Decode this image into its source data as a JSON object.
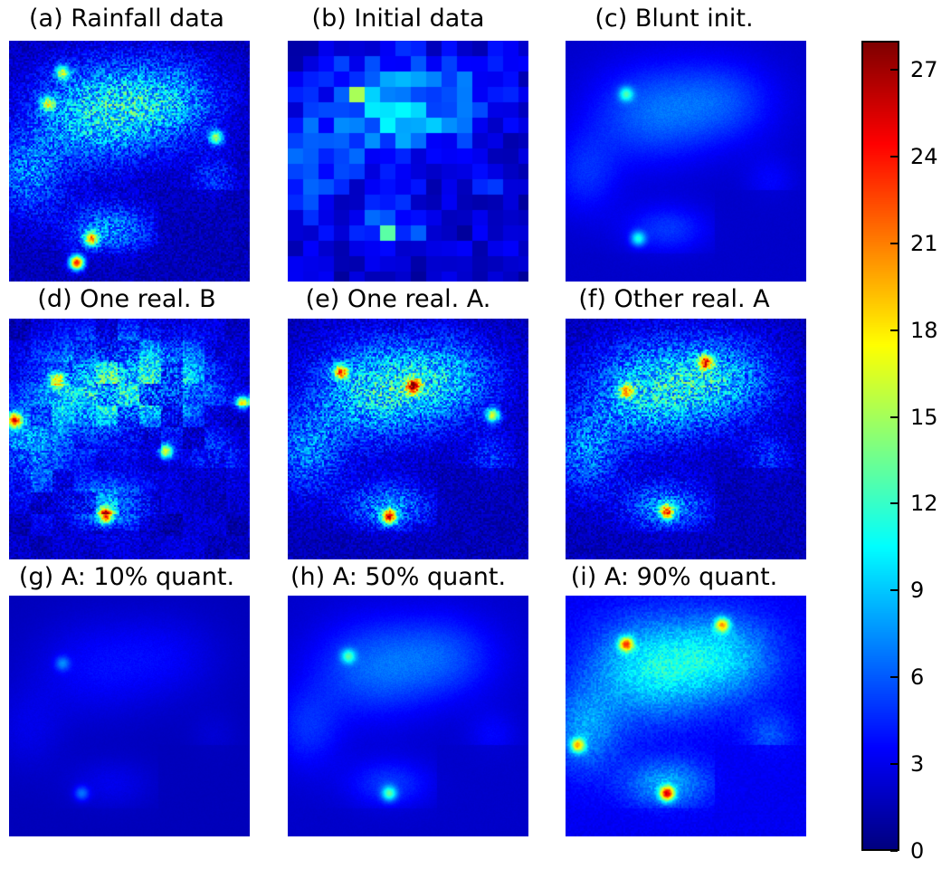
{
  "chart_data": {
    "type": "heatmap",
    "layout": "3x3 grid of heatmap panels with shared colorbar on the right",
    "colormap": "jet",
    "value_range": [
      0,
      28
    ],
    "panels": [
      {
        "title": "(a) Rainfall data",
        "style": "fine-noisy",
        "seed": 11,
        "hotspots": [
          [
            0.28,
            0.92,
            1.0
          ],
          [
            0.22,
            0.13,
            0.55
          ],
          [
            0.86,
            0.4,
            0.55
          ],
          [
            0.16,
            0.26,
            0.5
          ],
          [
            0.34,
            0.82,
            0.7
          ]
        ]
      },
      {
        "title": "(b) Initial data",
        "style": "blocky",
        "seed": 23,
        "hotspots": [
          [
            0.4,
            0.82,
            0.55
          ],
          [
            0.3,
            0.22,
            0.45
          ]
        ]
      },
      {
        "title": "(c) Blunt init.",
        "style": "smooth",
        "seed": 37,
        "hotspots": [
          [
            0.3,
            0.82,
            0.35
          ],
          [
            0.25,
            0.22,
            0.35
          ]
        ]
      },
      {
        "title": "(d) One real. B",
        "style": "blocky-noisy",
        "seed": 41,
        "hotspots": [
          [
            0.4,
            0.82,
            0.9
          ],
          [
            0.2,
            0.25,
            0.75
          ],
          [
            0.65,
            0.55,
            0.6
          ],
          [
            0.02,
            0.42,
            0.7
          ],
          [
            0.97,
            0.35,
            0.7
          ]
        ]
      },
      {
        "title": "(e) One real. A.",
        "style": "fine-noisy",
        "seed": 53,
        "hotspots": [
          [
            0.42,
            0.82,
            0.9
          ],
          [
            0.22,
            0.22,
            0.75
          ],
          [
            0.52,
            0.28,
            0.8
          ],
          [
            0.85,
            0.4,
            0.6
          ]
        ]
      },
      {
        "title": "(f) Other real. A",
        "style": "fine-noisy",
        "seed": 67,
        "hotspots": [
          [
            0.42,
            0.8,
            0.75
          ],
          [
            0.58,
            0.18,
            0.75
          ],
          [
            0.25,
            0.3,
            0.55
          ]
        ]
      },
      {
        "title": "(g) A: 10% quant.",
        "style": "smooth-faint",
        "seed": 71,
        "hotspots": [
          [
            0.22,
            0.28,
            0.2
          ],
          [
            0.3,
            0.82,
            0.2
          ]
        ]
      },
      {
        "title": "(h) A: 50% quant.",
        "style": "smooth",
        "seed": 83,
        "hotspots": [
          [
            0.25,
            0.25,
            0.35
          ],
          [
            0.42,
            0.82,
            0.4
          ]
        ]
      },
      {
        "title": "(i) A: 90% quant.",
        "style": "smooth-strong",
        "seed": 97,
        "hotspots": [
          [
            0.25,
            0.2,
            0.7
          ],
          [
            0.42,
            0.82,
            0.85
          ],
          [
            0.05,
            0.62,
            0.6
          ],
          [
            0.65,
            0.12,
            0.6
          ]
        ]
      }
    ],
    "colorbar": {
      "min": 0,
      "max": 28,
      "ticks": [
        "0",
        "3",
        "6",
        "9",
        "12",
        "15",
        "18",
        "21",
        "24",
        "27"
      ]
    }
  }
}
